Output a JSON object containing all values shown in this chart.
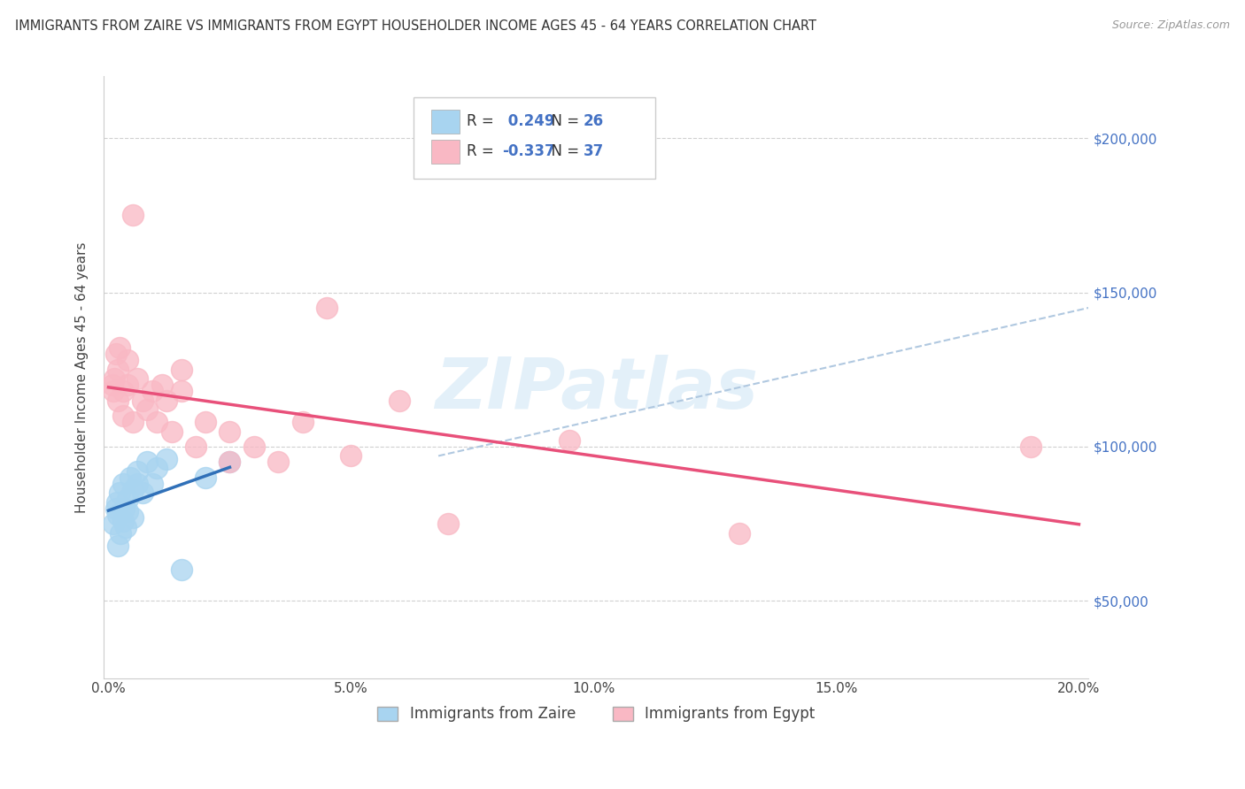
{
  "title": "IMMIGRANTS FROM ZAIRE VS IMMIGRANTS FROM EGYPT HOUSEHOLDER INCOME AGES 45 - 64 YEARS CORRELATION CHART",
  "source": "Source: ZipAtlas.com",
  "ylabel": "Householder Income Ages 45 - 64 years",
  "ytick_labels": [
    "$50,000",
    "$100,000",
    "$150,000",
    "$200,000"
  ],
  "ytick_vals": [
    50000,
    100000,
    150000,
    200000
  ],
  "ylim": [
    25000,
    220000
  ],
  "xlim": [
    -0.001,
    0.202
  ],
  "xtick_vals": [
    0.0,
    0.05,
    0.1,
    0.15,
    0.2
  ],
  "xtick_labels": [
    "0.0%",
    "5.0%",
    "10.0%",
    "15.0%",
    "20.0%"
  ],
  "R_zaire": 0.249,
  "N_zaire": 26,
  "R_egypt": -0.337,
  "N_egypt": 37,
  "legend_label_zaire": "Immigrants from Zaire",
  "legend_label_egypt": "Immigrants from Egypt",
  "color_zaire": "#a8d4f0",
  "color_egypt": "#f9b8c4",
  "line_color_zaire": "#3070b8",
  "line_color_egypt": "#e8507a",
  "dash_line_color": "#b0c8e0",
  "watermark": "ZIPatlas",
  "zaire_points": [
    [
      0.001,
      75000
    ],
    [
      0.0015,
      80000
    ],
    [
      0.0018,
      82000
    ],
    [
      0.002,
      68000
    ],
    [
      0.002,
      78000
    ],
    [
      0.0022,
      85000
    ],
    [
      0.0025,
      72000
    ],
    [
      0.003,
      88000
    ],
    [
      0.003,
      76000
    ],
    [
      0.0032,
      80000
    ],
    [
      0.0035,
      74000
    ],
    [
      0.004,
      83000
    ],
    [
      0.004,
      79000
    ],
    [
      0.0045,
      90000
    ],
    [
      0.005,
      86000
    ],
    [
      0.005,
      77000
    ],
    [
      0.006,
      88000
    ],
    [
      0.006,
      92000
    ],
    [
      0.007,
      85000
    ],
    [
      0.008,
      95000
    ],
    [
      0.009,
      88000
    ],
    [
      0.01,
      93000
    ],
    [
      0.012,
      96000
    ],
    [
      0.015,
      60000
    ],
    [
      0.02,
      90000
    ],
    [
      0.025,
      95000
    ]
  ],
  "egypt_points": [
    [
      0.0008,
      120000
    ],
    [
      0.001,
      118000
    ],
    [
      0.0012,
      122000
    ],
    [
      0.0015,
      130000
    ],
    [
      0.002,
      115000
    ],
    [
      0.002,
      125000
    ],
    [
      0.0022,
      132000
    ],
    [
      0.003,
      110000
    ],
    [
      0.003,
      118000
    ],
    [
      0.004,
      120000
    ],
    [
      0.004,
      128000
    ],
    [
      0.005,
      175000
    ],
    [
      0.005,
      108000
    ],
    [
      0.006,
      122000
    ],
    [
      0.007,
      115000
    ],
    [
      0.008,
      112000
    ],
    [
      0.009,
      118000
    ],
    [
      0.01,
      108000
    ],
    [
      0.011,
      120000
    ],
    [
      0.012,
      115000
    ],
    [
      0.013,
      105000
    ],
    [
      0.015,
      118000
    ],
    [
      0.015,
      125000
    ],
    [
      0.018,
      100000
    ],
    [
      0.02,
      108000
    ],
    [
      0.025,
      95000
    ],
    [
      0.025,
      105000
    ],
    [
      0.03,
      100000
    ],
    [
      0.035,
      95000
    ],
    [
      0.04,
      108000
    ],
    [
      0.045,
      145000
    ],
    [
      0.05,
      97000
    ],
    [
      0.06,
      115000
    ],
    [
      0.07,
      75000
    ],
    [
      0.095,
      102000
    ],
    [
      0.13,
      72000
    ],
    [
      0.19,
      100000
    ]
  ],
  "dash_line_x": [
    0.068,
    0.202
  ],
  "dash_line_y": [
    97000,
    145000
  ]
}
